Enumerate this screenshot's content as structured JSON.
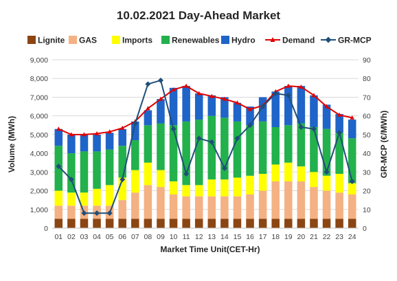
{
  "chart_data": {
    "type": "bar",
    "title": "10.02.2021  Day-Ahead Market",
    "xlabel": "Market Time Unit(CET-Hr)",
    "ylabel": "Volume (MWh)",
    "y2label": "GR-MCP (€/MWh)",
    "ylim": [
      0,
      9000
    ],
    "y2lim": [
      0,
      90
    ],
    "yticks": [
      "0",
      "1,000",
      "2,000",
      "3,000",
      "4,000",
      "5,000",
      "6,000",
      "7,000",
      "8,000",
      "9,000"
    ],
    "y2ticks": [
      "0",
      "10",
      "20",
      "30",
      "40",
      "50",
      "60",
      "70",
      "80",
      "90"
    ],
    "categories": [
      "01",
      "02",
      "03",
      "04",
      "05",
      "06",
      "07",
      "08",
      "09",
      "10",
      "11",
      "12",
      "13",
      "14",
      "15",
      "16",
      "17",
      "18",
      "19",
      "20",
      "21",
      "22",
      "23",
      "24"
    ],
    "legend_position": "top",
    "grid": true,
    "stacked_series": [
      {
        "name": "Lignite",
        "color": "#8B4513",
        "values": [
          500,
          500,
          500,
          500,
          500,
          500,
          500,
          500,
          500,
          500,
          500,
          500,
          500,
          500,
          500,
          500,
          500,
          500,
          500,
          500,
          500,
          500,
          500,
          500
        ]
      },
      {
        "name": "GAS",
        "color": "#F4B183",
        "values": [
          700,
          700,
          700,
          700,
          700,
          1000,
          1400,
          1800,
          1700,
          1300,
          1200,
          1200,
          1200,
          1200,
          1200,
          1300,
          1500,
          2000,
          2000,
          2000,
          1700,
          1500,
          1400,
          1300
        ]
      },
      {
        "name": "Imports",
        "color": "#FFFF00",
        "values": [
          800,
          700,
          700,
          900,
          1100,
          1200,
          1200,
          1200,
          900,
          700,
          600,
          600,
          900,
          900,
          1000,
          1000,
          900,
          900,
          1000,
          800,
          800,
          800,
          1000,
          600
        ]
      },
      {
        "name": "Renewables",
        "color": "#22B14C",
        "values": [
          2400,
          2100,
          2200,
          2000,
          1900,
          1700,
          1600,
          2000,
          2500,
          3000,
          3400,
          3500,
          3400,
          3300,
          3000,
          2700,
          2800,
          2000,
          2000,
          2300,
          2400,
          2500,
          2200,
          2400
        ]
      },
      {
        "name": "Hydro",
        "color": "#1F64C8",
        "values": [
          900,
          1000,
          900,
          900,
          900,
          900,
          1000,
          800,
          1300,
          2000,
          1900,
          1400,
          1100,
          1100,
          1000,
          1000,
          1300,
          1900,
          2100,
          2000,
          1700,
          1300,
          1000,
          1000
        ]
      }
    ],
    "line_series": [
      {
        "name": "Demand",
        "color": "#E00000",
        "axis": "left",
        "marker": "triangle",
        "values": [
          5300,
          5000,
          5000,
          5050,
          5150,
          5350,
          5700,
          6400,
          6900,
          7400,
          7600,
          7200,
          7050,
          6900,
          6700,
          6350,
          6550,
          7300,
          7600,
          7550,
          7100,
          6500,
          6050,
          5900
        ]
      },
      {
        "name": "GR-MCP",
        "color": "#1F4E79",
        "axis": "right",
        "marker": "diamond",
        "values": [
          33,
          26,
          8,
          8,
          8,
          26,
          56,
          77,
          79,
          53,
          29,
          48,
          46,
          32,
          48,
          55,
          65,
          72,
          71,
          54,
          53,
          30,
          51,
          25
        ]
      }
    ]
  }
}
